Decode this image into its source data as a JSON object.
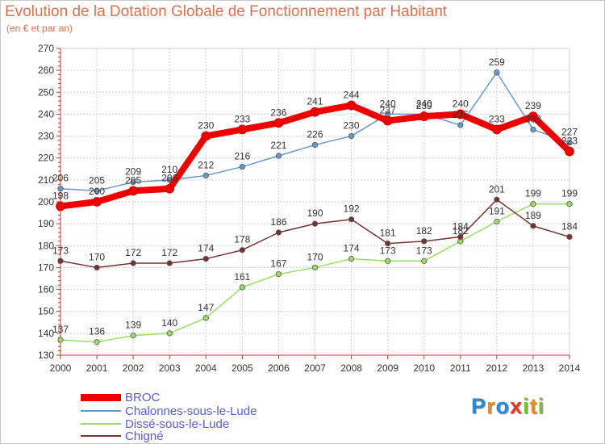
{
  "title": "Evolution de la Dotation Globale de Fonctionnement par Habitant",
  "subtitle": "(en € et par an)",
  "chart_data": {
    "type": "line",
    "x": [
      "2000",
      "2001",
      "2002",
      "2003",
      "2004",
      "2005",
      "2006",
      "2007",
      "2008",
      "2009",
      "2010",
      "2011",
      "2012",
      "2013",
      "2014"
    ],
    "ylim": [
      130,
      270
    ],
    "yticks": [
      130,
      140,
      150,
      160,
      170,
      180,
      190,
      200,
      210,
      220,
      230,
      240,
      250,
      260,
      270
    ],
    "grid": true,
    "legend_position": "bottom-left",
    "series": [
      {
        "name": "BROC",
        "color": "#ee0000",
        "values": [
          198,
          200,
          205,
          206,
          230,
          233,
          236,
          241,
          244,
          237,
          239,
          240,
          233,
          239,
          223
        ]
      },
      {
        "name": "Chalonnes-sous-le-Lude",
        "color": "#6699cc",
        "values": [
          206,
          205,
          209,
          210,
          212,
          216,
          221,
          226,
          230,
          240,
          240,
          235,
          259,
          233,
          227
        ]
      },
      {
        "name": "Dissé-sous-le-Lude",
        "color": "#99dd66",
        "values": [
          137,
          136,
          139,
          140,
          147,
          161,
          167,
          170,
          174,
          173,
          173,
          182,
          191,
          199,
          199
        ]
      },
      {
        "name": "Chigné",
        "color": "#773333",
        "values": [
          173,
          170,
          172,
          172,
          174,
          178,
          186,
          190,
          192,
          181,
          182,
          184,
          201,
          189,
          184
        ]
      }
    ]
  },
  "logo": {
    "letters": [
      "P",
      "r",
      "o",
      "x",
      "i",
      "t",
      "i"
    ],
    "colors": [
      "#2b8ad6",
      "#f08a1c",
      "#2b8ad6",
      "#e23b2e",
      "#7cbf2a",
      "#f08a1c",
      "#7cbf2a"
    ]
  }
}
